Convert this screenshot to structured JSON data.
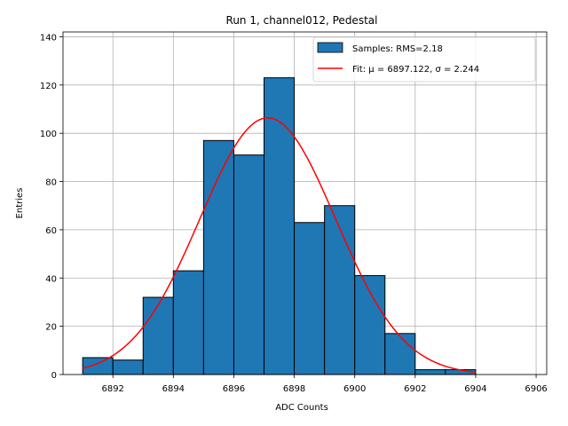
{
  "chart_data": {
    "type": "bar",
    "title": "Run 1, channel012, Pedestal",
    "xlabel": "ADC Counts",
    "ylabel": "Entries",
    "xlim": [
      6890.35,
      6906.35
    ],
    "ylim": [
      0,
      142
    ],
    "xticks": [
      6892,
      6894,
      6896,
      6898,
      6900,
      6902,
      6904,
      6906
    ],
    "yticks": [
      0,
      20,
      40,
      60,
      80,
      100,
      120,
      140
    ],
    "grid": true,
    "legend_position": "top-right",
    "bin_edges": [
      6891,
      6892,
      6893,
      6894,
      6895,
      6896,
      6897,
      6898,
      6899,
      6900,
      6901,
      6902,
      6903,
      6904
    ],
    "counts": [
      7,
      6,
      32,
      43,
      97,
      91,
      123,
      63,
      70,
      41,
      17,
      2,
      2
    ],
    "fit": {
      "mu": 6897.122,
      "sigma": 2.244,
      "amplitude": 106.4,
      "x_range": [
        6891,
        6904
      ]
    },
    "series": [
      {
        "name": "Samples: RMS=2.18",
        "color": "#1f77b4",
        "edgecolor": "#000000"
      },
      {
        "name": "Fit: μ = 6897.122, σ = 2.244",
        "color": "#ff0000"
      }
    ]
  }
}
